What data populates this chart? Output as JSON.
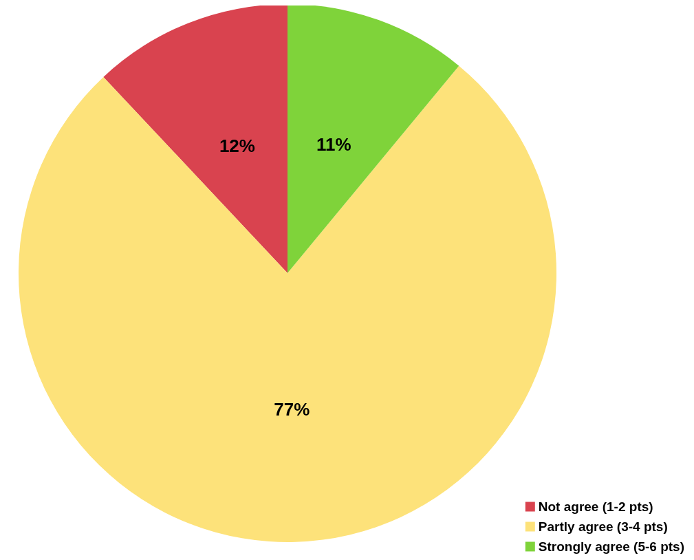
{
  "chart_data": {
    "type": "pie",
    "categories": [
      "Not agree (1-2 pts)",
      "Partly agree (3-4 pts)",
      "Strongly agree (5-6 pts)"
    ],
    "values": [
      12,
      77,
      11
    ],
    "colors": [
      "#d9434f",
      "#fde27a",
      "#7fd33a"
    ],
    "value_labels": [
      "12%",
      "77%",
      "11%"
    ],
    "legend": "bottom right"
  }
}
